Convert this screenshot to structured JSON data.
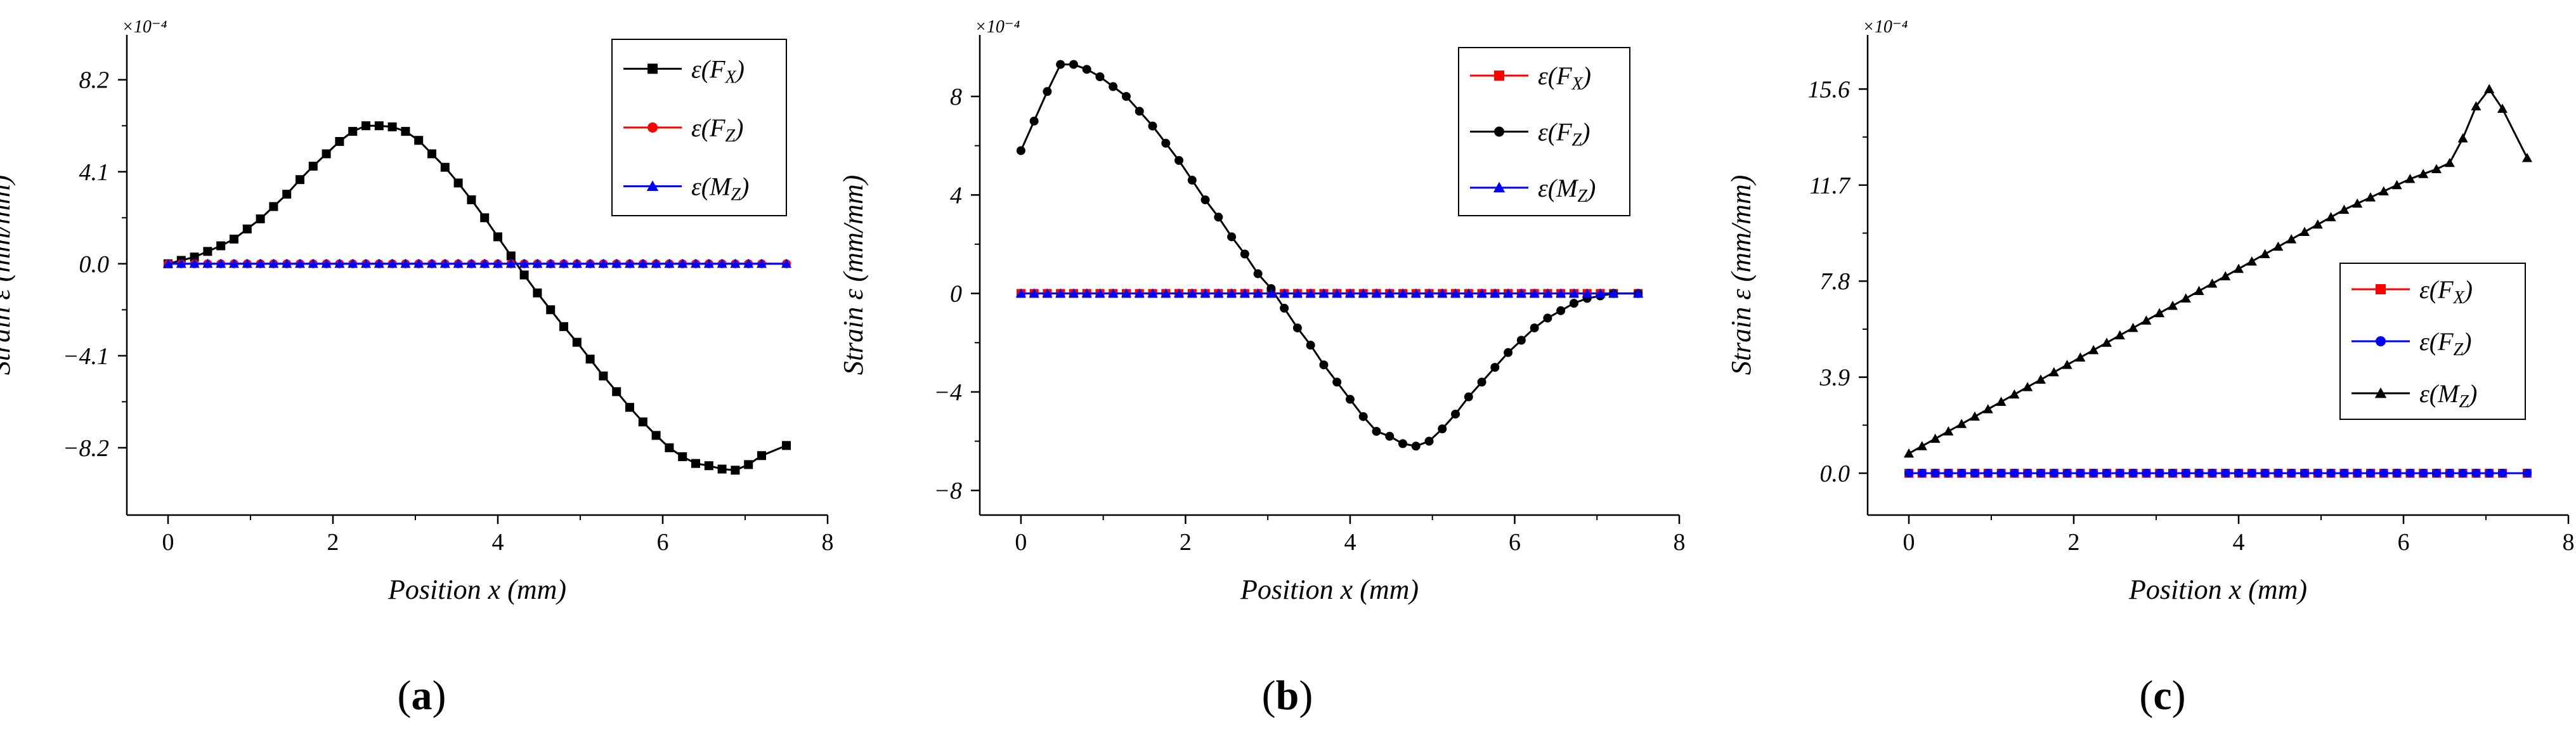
{
  "figure": {
    "captions": [
      "(a)",
      "(b)",
      "(c)"
    ]
  },
  "chart_data": [
    {
      "type": "line",
      "panel": "(a)",
      "xlabel": "Position x (mm)",
      "ylabel": "Strain ε (mm/mm)",
      "multiplier": "×10⁻⁴",
      "xlim": [
        -0.5,
        8
      ],
      "ylim": [
        -11.2,
        10.2
      ],
      "xticks": [
        0,
        2,
        4,
        6,
        8
      ],
      "xtick_labels": [
        "0",
        "2",
        "4",
        "6",
        "8"
      ],
      "yticks": [
        8.2,
        4.1,
        0.0,
        -4.1,
        -8.2
      ],
      "ytick_labels": [
        "8.2",
        "4.1",
        "0.0",
        "−4.1",
        "−8.2"
      ],
      "legend_position": "top-right",
      "series": [
        {
          "name": "ε(FX)",
          "label_main": "ε(F",
          "label_sub": "X",
          "color": "#000000",
          "marker": "square",
          "x": [
            0,
            0.16,
            0.32,
            0.48,
            0.64,
            0.8,
            0.96,
            1.12,
            1.28,
            1.44,
            1.6,
            1.76,
            1.92,
            2.08,
            2.24,
            2.4,
            2.56,
            2.72,
            2.88,
            3.04,
            3.2,
            3.36,
            3.52,
            3.68,
            3.84,
            4.0,
            4.16,
            4.32,
            4.48,
            4.64,
            4.8,
            4.96,
            5.12,
            5.28,
            5.44,
            5.6,
            5.76,
            5.92,
            6.08,
            6.24,
            6.4,
            6.56,
            6.72,
            6.88,
            7.04,
            7.2,
            7.5
          ],
          "y": [
            0,
            0.15,
            0.3,
            0.55,
            0.8,
            1.1,
            1.55,
            2.0,
            2.55,
            3.1,
            3.75,
            4.35,
            4.9,
            5.45,
            5.9,
            6.15,
            6.15,
            6.1,
            5.9,
            5.5,
            4.9,
            4.3,
            3.6,
            2.85,
            2.05,
            1.2,
            0.35,
            -0.5,
            -1.3,
            -2.05,
            -2.8,
            -3.5,
            -4.25,
            -5.0,
            -5.7,
            -6.4,
            -7.05,
            -7.65,
            -8.2,
            -8.6,
            -8.9,
            -9.0,
            -9.15,
            -9.2,
            -8.95,
            -8.55,
            -8.1
          ]
        },
        {
          "name": "ε(FZ)",
          "label_main": "ε(F",
          "label_sub": "Z",
          "color": "#ff0000",
          "marker": "circle",
          "x": [
            0,
            0.16,
            0.32,
            0.48,
            0.64,
            0.8,
            0.96,
            1.12,
            1.28,
            1.44,
            1.6,
            1.76,
            1.92,
            2.08,
            2.24,
            2.4,
            2.56,
            2.72,
            2.88,
            3.04,
            3.2,
            3.36,
            3.52,
            3.68,
            3.84,
            4.0,
            4.16,
            4.32,
            4.48,
            4.64,
            4.8,
            4.96,
            5.12,
            5.28,
            5.44,
            5.6,
            5.76,
            5.92,
            6.08,
            6.24,
            6.4,
            6.56,
            6.72,
            6.88,
            7.04,
            7.2,
            7.5
          ],
          "y": [
            0,
            0,
            0,
            0,
            0,
            0,
            0,
            0,
            0,
            0,
            0,
            0,
            0,
            0,
            0,
            0,
            0,
            0,
            0,
            0,
            0,
            0,
            0,
            0,
            0,
            0,
            0,
            0,
            0,
            0,
            0,
            0,
            0,
            0,
            0,
            0,
            0,
            0,
            0,
            0,
            0,
            0,
            0,
            0,
            0,
            0,
            0
          ]
        },
        {
          "name": "ε(MZ)",
          "label_main": "ε(M",
          "label_sub": "Z",
          "color": "#0000ff",
          "marker": "triangle",
          "x": [
            0,
            0.16,
            0.32,
            0.48,
            0.64,
            0.8,
            0.96,
            1.12,
            1.28,
            1.44,
            1.6,
            1.76,
            1.92,
            2.08,
            2.24,
            2.4,
            2.56,
            2.72,
            2.88,
            3.04,
            3.2,
            3.36,
            3.52,
            3.68,
            3.84,
            4.0,
            4.16,
            4.32,
            4.48,
            4.64,
            4.8,
            4.96,
            5.12,
            5.28,
            5.44,
            5.6,
            5.76,
            5.92,
            6.08,
            6.24,
            6.4,
            6.56,
            6.72,
            6.88,
            7.04,
            7.2,
            7.5
          ],
          "y": [
            0,
            0,
            0,
            0,
            0,
            0,
            0,
            0,
            0,
            0,
            0,
            0,
            0,
            0,
            0,
            0,
            0,
            0,
            0,
            0,
            0,
            0,
            0,
            0,
            0,
            0,
            0,
            0,
            0,
            0,
            0,
            0,
            0,
            0,
            0,
            0,
            0,
            0,
            0,
            0,
            0,
            0,
            0,
            0,
            0,
            0,
            0
          ]
        }
      ]
    },
    {
      "type": "line",
      "panel": "(b)",
      "xlabel": "Position x (mm)",
      "ylabel": "Strain ε (mm/mm)",
      "multiplier": "×10⁻⁴",
      "xlim": [
        -0.5,
        8
      ],
      "ylim": [
        -9,
        10.5
      ],
      "xticks": [
        0,
        2,
        4,
        6,
        8
      ],
      "xtick_labels": [
        "0",
        "2",
        "4",
        "6",
        "8"
      ],
      "yticks": [
        8,
        4,
        0,
        -4,
        -8
      ],
      "ytick_labels": [
        "8",
        "4",
        "0",
        "−4",
        "−8"
      ],
      "legend_position": "top-right",
      "series": [
        {
          "name": "ε(FX)",
          "label_main": "ε(F",
          "label_sub": "X",
          "color": "#ff0000",
          "marker": "square",
          "x": [
            0,
            0.16,
            0.32,
            0.48,
            0.64,
            0.8,
            0.96,
            1.12,
            1.28,
            1.44,
            1.6,
            1.76,
            1.92,
            2.08,
            2.24,
            2.4,
            2.56,
            2.72,
            2.88,
            3.04,
            3.2,
            3.36,
            3.52,
            3.68,
            3.84,
            4.0,
            4.16,
            4.32,
            4.48,
            4.64,
            4.8,
            4.96,
            5.12,
            5.28,
            5.44,
            5.6,
            5.76,
            5.92,
            6.08,
            6.24,
            6.4,
            6.56,
            6.72,
            6.88,
            7.04,
            7.2,
            7.5
          ],
          "y": [
            0,
            0,
            0,
            0,
            0,
            0,
            0,
            0,
            0,
            0,
            0,
            0,
            0,
            0,
            0,
            0,
            0,
            0,
            0,
            0,
            0,
            0,
            0,
            0,
            0,
            0,
            0,
            0,
            0,
            0,
            0,
            0,
            0,
            0,
            0,
            0,
            0,
            0,
            0,
            0,
            0,
            0,
            0,
            0,
            0,
            0,
            0
          ]
        },
        {
          "name": "ε(FZ)",
          "label_main": "ε(F",
          "label_sub": "Z",
          "color": "#000000",
          "marker": "circle",
          "x": [
            0,
            0.16,
            0.32,
            0.48,
            0.64,
            0.8,
            0.96,
            1.12,
            1.28,
            1.44,
            1.6,
            1.76,
            1.92,
            2.08,
            2.24,
            2.4,
            2.56,
            2.72,
            2.88,
            3.04,
            3.2,
            3.36,
            3.52,
            3.68,
            3.84,
            4.0,
            4.16,
            4.32,
            4.48,
            4.64,
            4.8,
            4.96,
            5.12,
            5.28,
            5.44,
            5.6,
            5.76,
            5.92,
            6.08,
            6.24,
            6.4,
            6.56,
            6.72,
            6.88,
            7.04,
            7.2,
            7.5
          ],
          "y": [
            5.8,
            7.0,
            8.2,
            9.3,
            9.3,
            9.1,
            8.8,
            8.4,
            8.0,
            7.4,
            6.8,
            6.1,
            5.4,
            4.6,
            3.8,
            3.1,
            2.3,
            1.6,
            0.8,
            0.2,
            -0.6,
            -1.4,
            -2.1,
            -2.9,
            -3.6,
            -4.3,
            -5.0,
            -5.6,
            -5.8,
            -6.1,
            -6.2,
            -6.0,
            -5.5,
            -4.9,
            -4.2,
            -3.6,
            -3.0,
            -2.4,
            -1.9,
            -1.4,
            -1.0,
            -0.7,
            -0.4,
            -0.2,
            -0.1,
            0,
            0
          ]
        },
        {
          "name": "ε(MZ)",
          "label_main": "ε(M",
          "label_sub": "Z",
          "color": "#0000ff",
          "marker": "triangle",
          "x": [
            0,
            0.16,
            0.32,
            0.48,
            0.64,
            0.8,
            0.96,
            1.12,
            1.28,
            1.44,
            1.6,
            1.76,
            1.92,
            2.08,
            2.24,
            2.4,
            2.56,
            2.72,
            2.88,
            3.04,
            3.2,
            3.36,
            3.52,
            3.68,
            3.84,
            4.0,
            4.16,
            4.32,
            4.48,
            4.64,
            4.8,
            4.96,
            5.12,
            5.28,
            5.44,
            5.6,
            5.76,
            5.92,
            6.08,
            6.24,
            6.4,
            6.56,
            6.72,
            6.88,
            7.04,
            7.2,
            7.5
          ],
          "y": [
            0,
            0,
            0,
            0,
            0,
            0,
            0,
            0,
            0,
            0,
            0,
            0,
            0,
            0,
            0,
            0,
            0,
            0,
            0,
            0,
            0,
            0,
            0,
            0,
            0,
            0,
            0,
            0,
            0,
            0,
            0,
            0,
            0,
            0,
            0,
            0,
            0,
            0,
            0,
            0,
            0,
            0,
            0,
            0,
            0,
            0,
            0
          ]
        }
      ]
    },
    {
      "type": "line",
      "panel": "(c)",
      "xlabel": "Position x (mm)",
      "ylabel": "Strain ε (mm/mm)",
      "multiplier": "×10⁻⁴",
      "xlim": [
        -0.5,
        8
      ],
      "ylim": [
        -1.7,
        17.8
      ],
      "xticks": [
        0,
        2,
        4,
        6,
        8
      ],
      "xtick_labels": [
        "0",
        "2",
        "4",
        "6",
        "8"
      ],
      "yticks": [
        15.6,
        11.7,
        7.8,
        3.9,
        0.0
      ],
      "ytick_labels": [
        "15.6",
        "11.7",
        "7.8",
        "3.9",
        "0.0"
      ],
      "legend_position": "center-right",
      "series": [
        {
          "name": "ε(FX)",
          "label_main": "ε(F",
          "label_sub": "X",
          "color": "#ff0000",
          "marker": "square",
          "x": [
            0,
            0.16,
            0.32,
            0.48,
            0.64,
            0.8,
            0.96,
            1.12,
            1.28,
            1.44,
            1.6,
            1.76,
            1.92,
            2.08,
            2.24,
            2.4,
            2.56,
            2.72,
            2.88,
            3.04,
            3.2,
            3.36,
            3.52,
            3.68,
            3.84,
            4.0,
            4.16,
            4.32,
            4.48,
            4.64,
            4.8,
            4.96,
            5.12,
            5.28,
            5.44,
            5.6,
            5.76,
            5.92,
            6.08,
            6.24,
            6.4,
            6.56,
            6.72,
            6.88,
            7.04,
            7.2,
            7.5
          ],
          "y": [
            0,
            0,
            0,
            0,
            0,
            0,
            0,
            0,
            0,
            0,
            0,
            0,
            0,
            0,
            0,
            0,
            0,
            0,
            0,
            0,
            0,
            0,
            0,
            0,
            0,
            0,
            0,
            0,
            0,
            0,
            0,
            0,
            0,
            0,
            0,
            0,
            0,
            0,
            0,
            0,
            0,
            0,
            0,
            0,
            0,
            0,
            0
          ]
        },
        {
          "name": "ε(FZ)",
          "label_main": "ε(F",
          "label_sub": "Z",
          "color": "#0000ff",
          "marker": "circle",
          "x": [
            0,
            0.16,
            0.32,
            0.48,
            0.64,
            0.8,
            0.96,
            1.12,
            1.28,
            1.44,
            1.6,
            1.76,
            1.92,
            2.08,
            2.24,
            2.4,
            2.56,
            2.72,
            2.88,
            3.04,
            3.2,
            3.36,
            3.52,
            3.68,
            3.84,
            4.0,
            4.16,
            4.32,
            4.48,
            4.64,
            4.8,
            4.96,
            5.12,
            5.28,
            5.44,
            5.6,
            5.76,
            5.92,
            6.08,
            6.24,
            6.4,
            6.56,
            6.72,
            6.88,
            7.04,
            7.2,
            7.5
          ],
          "y": [
            0,
            0,
            0,
            0,
            0,
            0,
            0,
            0,
            0,
            0,
            0,
            0,
            0,
            0,
            0,
            0,
            0,
            0,
            0,
            0,
            0,
            0,
            0,
            0,
            0,
            0,
            0,
            0,
            0,
            0,
            0,
            0,
            0,
            0,
            0,
            0,
            0,
            0,
            0,
            0,
            0,
            0,
            0,
            0,
            0,
            0,
            0
          ]
        },
        {
          "name": "ε(MZ)",
          "label_main": "ε(M",
          "label_sub": "Z",
          "color": "#000000",
          "marker": "triangle",
          "x": [
            0,
            0.16,
            0.32,
            0.48,
            0.64,
            0.8,
            0.96,
            1.12,
            1.28,
            1.44,
            1.6,
            1.76,
            1.92,
            2.08,
            2.24,
            2.4,
            2.56,
            2.72,
            2.88,
            3.04,
            3.2,
            3.36,
            3.52,
            3.68,
            3.84,
            4.0,
            4.16,
            4.32,
            4.48,
            4.64,
            4.8,
            4.96,
            5.12,
            5.28,
            5.44,
            5.6,
            5.76,
            5.92,
            6.08,
            6.24,
            6.4,
            6.56,
            6.72,
            6.88,
            7.04,
            7.2,
            7.5
          ],
          "y": [
            0.8,
            1.1,
            1.4,
            1.7,
            2.0,
            2.3,
            2.6,
            2.9,
            3.2,
            3.5,
            3.8,
            4.1,
            4.4,
            4.7,
            5.0,
            5.3,
            5.6,
            5.9,
            6.2,
            6.5,
            6.8,
            7.1,
            7.4,
            7.7,
            8.0,
            8.3,
            8.6,
            8.9,
            9.2,
            9.5,
            9.8,
            10.1,
            10.4,
            10.7,
            10.95,
            11.2,
            11.45,
            11.7,
            11.95,
            12.15,
            12.35,
            12.6,
            13.6,
            14.9,
            15.6,
            14.8,
            12.8
          ]
        }
      ]
    }
  ]
}
